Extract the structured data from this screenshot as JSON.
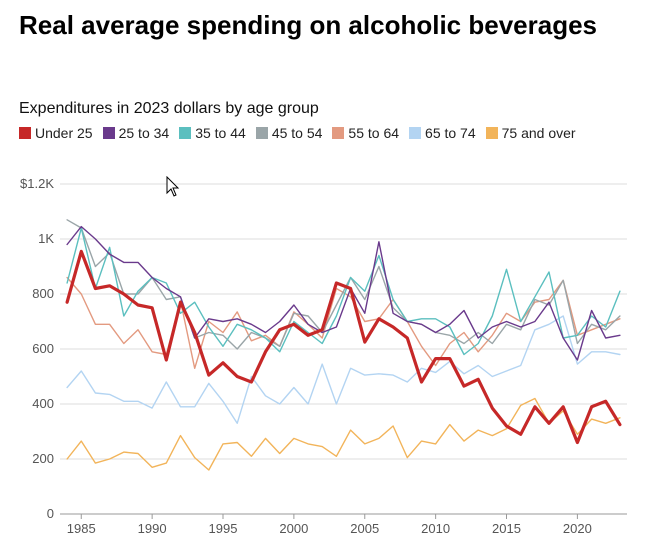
{
  "header": {
    "title": "Real average spending on alcoholic beverages",
    "subtitle": "Expenditures in 2023 dollars by age group"
  },
  "chart_data": {
    "type": "line",
    "title": "Real average spending on alcoholic beverages",
    "subtitle": "Expenditures in 2023 dollars by age group",
    "xlabel": "",
    "ylabel": "",
    "xlim": [
      1983.5,
      2023.5
    ],
    "ylim": [
      0,
      1200
    ],
    "grid": true,
    "legend_position": "top",
    "y_ticks": [
      0,
      200,
      400,
      600,
      800,
      1000,
      1200
    ],
    "y_tick_labels": [
      "0",
      "200",
      "400",
      "600",
      "800",
      "1K",
      "$1.2K"
    ],
    "x_ticks": [
      1985,
      1990,
      1995,
      2000,
      2005,
      2010,
      2015,
      2020
    ],
    "x_tick_labels": [
      "1985",
      "1990",
      "1995",
      "2000",
      "2005",
      "2010",
      "2015",
      "2020"
    ],
    "x": [
      1984,
      1985,
      1986,
      1987,
      1988,
      1989,
      1990,
      1991,
      1992,
      1993,
      1994,
      1995,
      1996,
      1997,
      1998,
      1999,
      2000,
      2001,
      2002,
      2003,
      2004,
      2005,
      2006,
      2007,
      2008,
      2009,
      2010,
      2011,
      2012,
      2013,
      2014,
      2015,
      2016,
      2017,
      2018,
      2019,
      2020,
      2021,
      2022,
      2023
    ],
    "series": [
      {
        "name": "75 and over",
        "color": "#f2b45a",
        "width": 1.4,
        "values": [
          200,
          265,
          185,
          200,
          225,
          220,
          170,
          185,
          285,
          205,
          160,
          255,
          260,
          210,
          275,
          220,
          275,
          255,
          245,
          210,
          305,
          255,
          275,
          320,
          205,
          265,
          255,
          325,
          265,
          305,
          285,
          310,
          395,
          420,
          330,
          375,
          290,
          345,
          330,
          350
        ]
      },
      {
        "name": "65 to 74",
        "color": "#b3d4f2",
        "width": 1.4,
        "values": [
          460,
          520,
          440,
          435,
          410,
          410,
          385,
          480,
          390,
          390,
          475,
          410,
          330,
          500,
          430,
          400,
          460,
          400,
          545,
          400,
          530,
          505,
          510,
          505,
          480,
          530,
          515,
          555,
          510,
          540,
          500,
          520,
          540,
          670,
          690,
          720,
          545,
          590,
          590,
          580
        ]
      },
      {
        "name": "55 to 64",
        "color": "#e39a80",
        "width": 1.4,
        "values": [
          860,
          800,
          690,
          690,
          620,
          670,
          590,
          580,
          775,
          530,
          700,
          660,
          735,
          630,
          650,
          610,
          735,
          690,
          640,
          820,
          790,
          700,
          710,
          780,
          700,
          610,
          540,
          620,
          660,
          590,
          650,
          730,
          700,
          770,
          780,
          850,
          650,
          670,
          690,
          710
        ]
      },
      {
        "name": "45 to 54",
        "color": "#9aa5a8",
        "width": 1.4,
        "values": [
          1070,
          1040,
          900,
          950,
          800,
          800,
          860,
          780,
          790,
          640,
          660,
          650,
          600,
          660,
          640,
          610,
          730,
          720,
          660,
          760,
          860,
          780,
          900,
          750,
          700,
          690,
          660,
          650,
          620,
          660,
          620,
          690,
          670,
          780,
          760,
          850,
          620,
          690,
          670,
          720
        ]
      },
      {
        "name": "35 to 44",
        "color": "#5bbfbf",
        "width": 1.4,
        "values": [
          840,
          1040,
          820,
          970,
          720,
          810,
          860,
          840,
          730,
          770,
          680,
          610,
          690,
          670,
          640,
          590,
          700,
          660,
          620,
          720,
          860,
          810,
          940,
          780,
          700,
          710,
          710,
          680,
          580,
          620,
          720,
          890,
          700,
          790,
          880,
          640,
          650,
          720,
          680,
          810
        ]
      },
      {
        "name": "25 to 34",
        "color": "#6a3a8c",
        "width": 1.4,
        "values": [
          980,
          1045,
          1000,
          945,
          915,
          915,
          860,
          820,
          790,
          640,
          710,
          700,
          710,
          690,
          660,
          700,
          760,
          690,
          660,
          680,
          820,
          730,
          990,
          730,
          700,
          690,
          660,
          690,
          740,
          640,
          680,
          700,
          680,
          700,
          770,
          640,
          560,
          740,
          640,
          650
        ]
      },
      {
        "name": "Under 25",
        "color": "#c62828",
        "width": 3.2,
        "values": [
          770,
          955,
          820,
          830,
          800,
          760,
          750,
          560,
          770,
          660,
          505,
          550,
          500,
          480,
          590,
          670,
          690,
          650,
          670,
          840,
          820,
          625,
          710,
          680,
          640,
          480,
          565,
          565,
          465,
          490,
          385,
          320,
          290,
          390,
          330,
          390,
          260,
          390,
          410,
          325
        ]
      }
    ],
    "legend": [
      "Under 25",
      "25 to 34",
      "35 to 44",
      "45 to 54",
      "55 to 64",
      "65 to 74",
      "75 and over"
    ]
  }
}
